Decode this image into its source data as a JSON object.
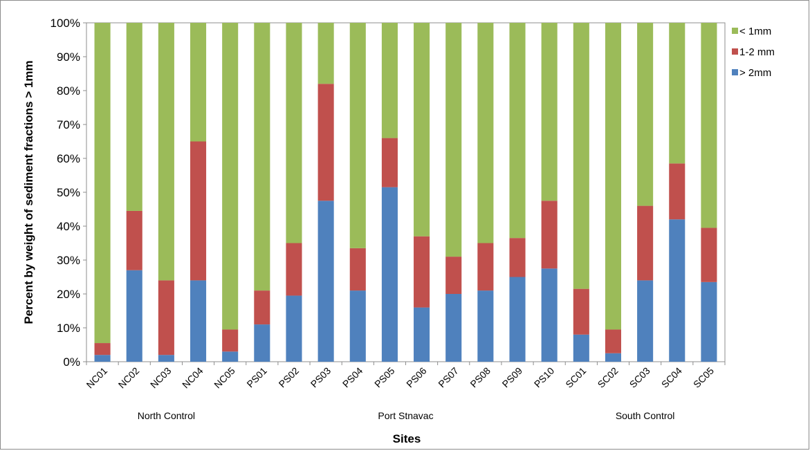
{
  "chart_data": {
    "type": "bar",
    "stacked": true,
    "normalized": true,
    "title": "",
    "xlabel": "Sites",
    "ylabel": "Percent by weight of sediment fractions > 1mm",
    "ylim": [
      0,
      100
    ],
    "yticks": [
      "0%",
      "10%",
      "20%",
      "30%",
      "40%",
      "50%",
      "60%",
      "70%",
      "80%",
      "90%",
      "100%"
    ],
    "grid": false,
    "legend_position": "right",
    "categories": [
      "NC01",
      "NC02",
      "NC03",
      "NC04",
      "NC05",
      "PS01",
      "PS02",
      "PS03",
      "PS04",
      "PS05",
      "PS06",
      "PS07",
      "PS08",
      "PS09",
      "PS10",
      "SC01",
      "SC02",
      "SC03",
      "SC04",
      "SC05"
    ],
    "groups": [
      {
        "label": "North Control",
        "from": 0,
        "to": 4
      },
      {
        "label": "Port Stnavac",
        "from": 5,
        "to": 14
      },
      {
        "label": "South Control",
        "from": 15,
        "to": 19
      }
    ],
    "series": [
      {
        "name": "> 2mm",
        "color": "#4f81bd",
        "values": [
          2,
          27,
          2,
          24,
          3,
          11,
          19.5,
          47.5,
          21,
          51.5,
          16,
          20,
          21,
          25,
          27.5,
          8,
          2.5,
          24,
          42,
          23.5
        ]
      },
      {
        "name": "1-2 mm",
        "color": "#c0504d",
        "values": [
          3.5,
          17.5,
          22,
          41,
          6.5,
          10,
          15.5,
          34.5,
          12.5,
          14.5,
          21,
          11,
          14,
          11.5,
          20,
          13.5,
          7,
          22,
          16.5,
          16
        ]
      },
      {
        "name": "< 1mm",
        "color": "#9bbb59",
        "values": [
          94.5,
          55.5,
          76,
          35,
          90.5,
          79,
          65,
          18,
          66.5,
          34,
          63,
          69,
          65,
          63.5,
          52.5,
          78.5,
          90.5,
          54,
          41.5,
          60.5
        ]
      }
    ],
    "legend_order": [
      "< 1mm",
      "1-2 mm",
      "> 2mm"
    ]
  }
}
